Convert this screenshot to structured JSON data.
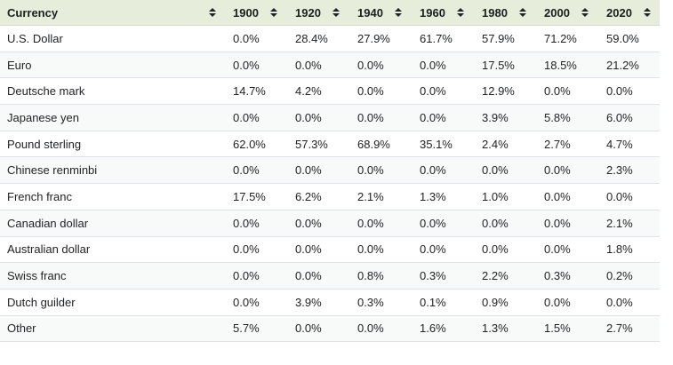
{
  "ui": {
    "header": {
      "currency_label": "Currency",
      "sort_icon": "sort-arrows-icon"
    },
    "colors": {
      "header_bg": "#e6eedb",
      "row_alt_bg": "#f8f9f9",
      "border": "#dfe2e6",
      "text": "#222325"
    }
  },
  "chart_data": {
    "type": "table",
    "categories": [
      "1900",
      "1920",
      "1940",
      "1960",
      "1980",
      "2000",
      "2020"
    ],
    "value_unit": "%",
    "rows": [
      {
        "name": "U.S. Dollar",
        "values": [
          0.0,
          28.4,
          27.9,
          61.7,
          57.9,
          71.2,
          59.0
        ]
      },
      {
        "name": "Euro",
        "values": [
          0.0,
          0.0,
          0.0,
          0.0,
          17.5,
          18.5,
          21.2
        ]
      },
      {
        "name": "Deutsche mark",
        "values": [
          14.7,
          4.2,
          0.0,
          0.0,
          12.9,
          0.0,
          0.0
        ]
      },
      {
        "name": "Japanese yen",
        "values": [
          0.0,
          0.0,
          0.0,
          0.0,
          3.9,
          5.8,
          6.0
        ]
      },
      {
        "name": "Pound sterling",
        "values": [
          62.0,
          57.3,
          68.9,
          35.1,
          2.4,
          2.7,
          4.7
        ]
      },
      {
        "name": "Chinese renminbi",
        "values": [
          0.0,
          0.0,
          0.0,
          0.0,
          0.0,
          0.0,
          2.3
        ]
      },
      {
        "name": "French franc",
        "values": [
          17.5,
          6.2,
          2.1,
          1.3,
          1.0,
          0.0,
          0.0
        ]
      },
      {
        "name": "Canadian dollar",
        "values": [
          0.0,
          0.0,
          0.0,
          0.0,
          0.0,
          0.0,
          2.1
        ]
      },
      {
        "name": "Australian dollar",
        "values": [
          0.0,
          0.0,
          0.0,
          0.0,
          0.0,
          0.0,
          1.8
        ]
      },
      {
        "name": "Swiss franc",
        "values": [
          0.0,
          0.0,
          0.8,
          0.3,
          2.2,
          0.3,
          0.2
        ]
      },
      {
        "name": "Dutch guilder",
        "values": [
          0.0,
          3.9,
          0.3,
          0.1,
          0.9,
          0.0,
          0.0
        ]
      },
      {
        "name": "Other",
        "values": [
          5.7,
          0.0,
          0.0,
          1.6,
          1.3,
          1.5,
          2.7
        ]
      }
    ]
  }
}
